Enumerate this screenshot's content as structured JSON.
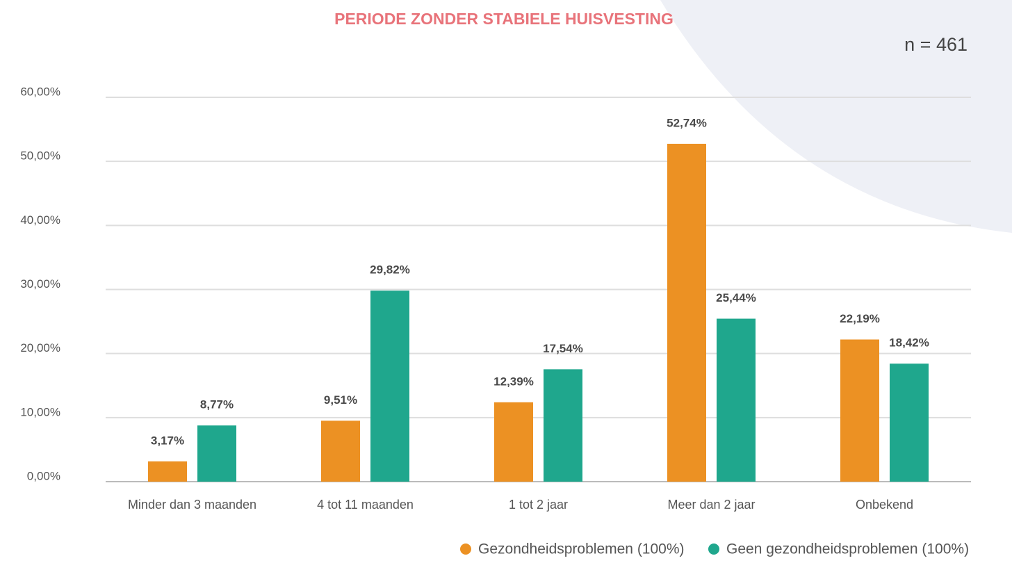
{
  "chart_data": {
    "type": "bar",
    "title": "PERIODE ZONDER STABIELE HUISVESTING",
    "annotation": "n = 461",
    "categories": [
      "Minder dan 3 maanden",
      "4 tot 11 maanden",
      "1 tot 2 jaar",
      "Meer dan 2 jaar",
      "Onbekend"
    ],
    "series": [
      {
        "name": "Gezondheidsproblemen (100%)",
        "color": "#ec9123",
        "values": [
          3.17,
          9.51,
          12.39,
          52.74,
          22.19
        ],
        "value_labels": [
          "3,17%",
          "9,51%",
          "12,39%",
          "52,74%",
          "22,19%"
        ]
      },
      {
        "name": "Geen gezondheidsproblemen (100%)",
        "color": "#1fa78d",
        "values": [
          8.77,
          29.82,
          17.54,
          25.44,
          18.42
        ],
        "value_labels": [
          "8,77%",
          "29,82%",
          "17,54%",
          "25,44%",
          "18,42%"
        ]
      }
    ],
    "ylim": [
      0,
      60
    ],
    "yticks": [
      {
        "value": 0,
        "label": "0,00%"
      },
      {
        "value": 10,
        "label": "10,00%"
      },
      {
        "value": 20,
        "label": "20,00%"
      },
      {
        "value": 30,
        "label": "30,00%"
      },
      {
        "value": 40,
        "label": "40,00%"
      },
      {
        "value": 50,
        "label": "50,00%"
      },
      {
        "value": 60,
        "label": "60,00%"
      }
    ],
    "grid": true,
    "legend": "bottom-right"
  }
}
